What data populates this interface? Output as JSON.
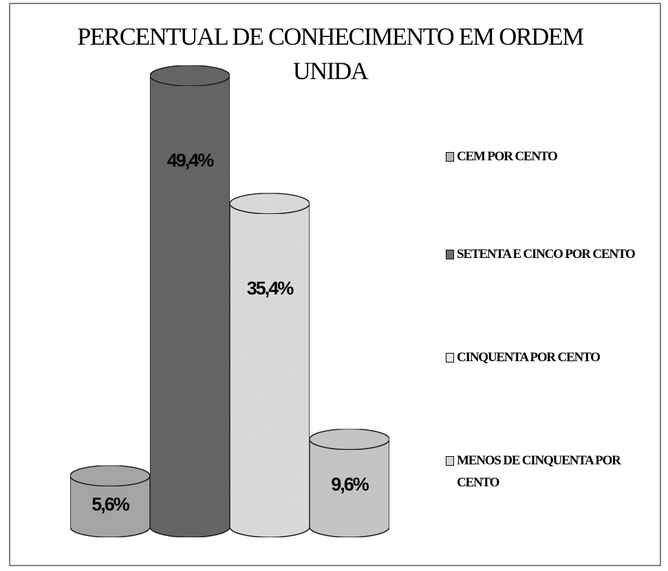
{
  "chart_data": {
    "type": "cylinder-bar",
    "title": "PERCENTUAL DE CONHECIMENTO EM ORDEM UNIDA",
    "series": [
      {
        "name": "CEM POR CENTO",
        "color": "#b4b4b4",
        "values": [
          5.6
        ],
        "value_labels": [
          "5,6%"
        ]
      },
      {
        "name": "SETENTA E CINCO POR CENTO",
        "color": "#6e6e6e",
        "values": [
          49.4
        ],
        "value_labels": [
          "49,4%"
        ]
      },
      {
        "name": "CINQUENTA POR CENTO",
        "color": "#ececec",
        "values": [
          35.4
        ],
        "value_labels": [
          "35,4%"
        ]
      },
      {
        "name": "MENOS DE CINQUENTA POR CENTO",
        "color": "#d6d6d6",
        "values": [
          9.6
        ],
        "value_labels": [
          "9,6%"
        ]
      }
    ],
    "legend": "right"
  }
}
